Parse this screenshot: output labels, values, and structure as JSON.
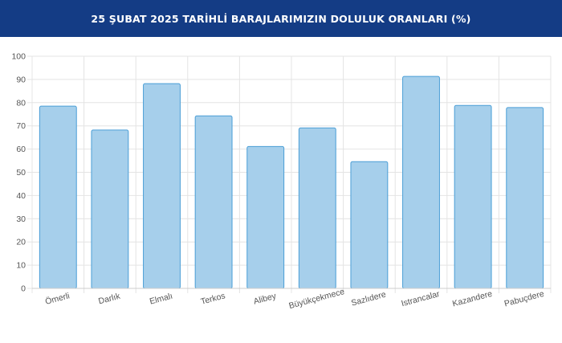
{
  "header": {
    "title": "25 ŞUBAT 2025 TARİHLİ BARAJLARIMIZIN DOLULUK ORANLARI (%)"
  },
  "colors": {
    "header_bg": "#143c85",
    "bar_fill": "#a6cfeb",
    "bar_stroke": "#4a9ed6",
    "grid": "#e4e4e4"
  },
  "chart_data": {
    "type": "bar",
    "title": "25 ŞUBAT 2025 TARİHLİ BARAJLARIMIZIN DOLULUK ORANLARI (%)",
    "xlabel": "",
    "ylabel": "",
    "categories": [
      "Ömerli",
      "Darlık",
      "Elmalı",
      "Terkos",
      "Alibey",
      "Büyükçekmece",
      "Sazlıdere",
      "Istrancalar",
      "Kazandere",
      "Pabuçdere"
    ],
    "values": [
      78.5,
      68.2,
      88.2,
      74.3,
      61.1,
      69.1,
      54.6,
      91.3,
      78.8,
      77.9
    ],
    "ylim": [
      0,
      100
    ],
    "yticks": [
      "0",
      "10",
      "20",
      "30",
      "40",
      "50",
      "60",
      "70",
      "80",
      "90",
      "100"
    ],
    "grid": true,
    "legend": "none"
  }
}
